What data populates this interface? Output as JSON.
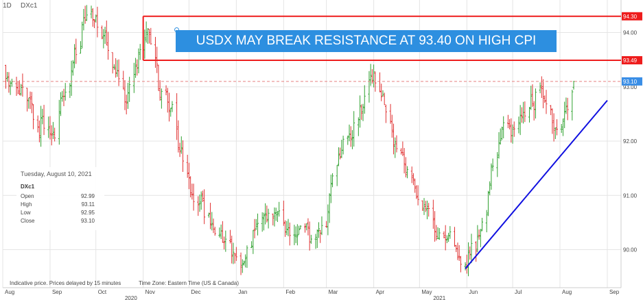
{
  "header": {
    "interval": "1D",
    "symbol": "DXc1"
  },
  "headline": "USDX MAY BREAK RESISTANCE AT 93.40 ON HIGH CPI",
  "colors": {
    "up": "#2ea02e",
    "down": "#e03030",
    "resistance": "#ee1c1c",
    "dashed": "#e88080",
    "trendline": "#1010e0",
    "headline_bg": "#2d8fe0",
    "grid": "#e4e4e4"
  },
  "info_box": {
    "date": "Tuesday, August 10, 2021",
    "symbol": "DXc1",
    "rows": [
      {
        "label": "Open",
        "value": "92.99"
      },
      {
        "label": "High",
        "value": "93.11"
      },
      {
        "label": "Low",
        "value": "92.95"
      },
      {
        "label": "Close",
        "value": "93.10"
      }
    ]
  },
  "footer": {
    "delay_note": "Indicative price. Prices delayed by 15 minutes",
    "timezone": "Time Zone: Eastern Time (US & Canada)"
  },
  "chart_data": {
    "type": "candlestick",
    "x_axis": {
      "start": "2020-08-01",
      "end": "2021-09-10",
      "ticks": [
        {
          "label": "Aug",
          "date": "2020-08-01"
        },
        {
          "label": "Sep",
          "date": "2020-09-01"
        },
        {
          "label": "Oct",
          "date": "2020-10-01"
        },
        {
          "label": "Nov",
          "date": "2020-11-01"
        },
        {
          "label": "Dec",
          "date": "2020-12-01"
        },
        {
          "label": "Jan",
          "date": "2021-01-01"
        },
        {
          "label": "Feb",
          "date": "2021-02-01"
        },
        {
          "label": "Mar",
          "date": "2021-03-01"
        },
        {
          "label": "Apr",
          "date": "2021-04-01"
        },
        {
          "label": "May",
          "date": "2021-05-01"
        },
        {
          "label": "Jun",
          "date": "2021-06-01"
        },
        {
          "label": "Jul",
          "date": "2021-07-01"
        },
        {
          "label": "Aug",
          "date": "2021-08-01"
        },
        {
          "label": "Sep",
          "date": "2021-09-01"
        }
      ],
      "years": [
        {
          "label": "2020",
          "date": "2020-10-20"
        },
        {
          "label": "2021",
          "date": "2021-05-10"
        }
      ]
    },
    "y_axis": {
      "ylim": [
        89.3,
        94.6
      ],
      "ticks": [
        90.0,
        91.0,
        92.0,
        93.0,
        94.0
      ],
      "tick_labels": [
        "90.00",
        "91.00",
        "92.00",
        "93.00",
        "94.00"
      ]
    },
    "price_path": [
      [
        "2020-08-01",
        93.4
      ],
      [
        "2020-08-20",
        92.4
      ],
      [
        "2020-09-01",
        92.2
      ],
      [
        "2020-09-10",
        93.0
      ],
      [
        "2020-09-25",
        94.4
      ],
      [
        "2020-10-05",
        93.8
      ],
      [
        "2020-10-20",
        92.9
      ],
      [
        "2020-11-04",
        94.1
      ],
      [
        "2020-11-12",
        92.8
      ],
      [
        "2020-11-20",
        92.4
      ],
      [
        "2020-12-01",
        91.2
      ],
      [
        "2020-12-20",
        90.2
      ],
      [
        "2021-01-06",
        89.7
      ],
      [
        "2021-01-15",
        90.6
      ],
      [
        "2021-01-28",
        90.6
      ],
      [
        "2021-02-10",
        90.4
      ],
      [
        "2021-02-25",
        90.2
      ],
      [
        "2021-03-05",
        91.5
      ],
      [
        "2021-03-18",
        92.1
      ],
      [
        "2021-03-31",
        93.3
      ],
      [
        "2021-04-15",
        92.0
      ],
      [
        "2021-04-30",
        91.0
      ],
      [
        "2021-05-12",
        90.4
      ],
      [
        "2021-05-25",
        89.9
      ],
      [
        "2021-06-08",
        90.1
      ],
      [
        "2021-06-20",
        92.0
      ],
      [
        "2021-07-01",
        92.3
      ],
      [
        "2021-07-10",
        92.7
      ],
      [
        "2021-07-20",
        93.1
      ],
      [
        "2021-07-30",
        92.1
      ],
      [
        "2021-08-10",
        93.1
      ]
    ],
    "last_bar": {
      "date": "2021-08-10",
      "open": 92.99,
      "high": 93.11,
      "low": 92.95,
      "close": 93.1
    },
    "horizontal_lines": [
      {
        "label": "94.30",
        "value": 94.3,
        "style": "solid",
        "start": "2020-11-01"
      },
      {
        "label": "93.49",
        "value": 93.49,
        "style": "solid",
        "start": "2020-11-01"
      },
      {
        "label": "93.10",
        "value": 93.1,
        "style": "dashed",
        "start": "2020-08-01"
      }
    ],
    "trendline": {
      "from": [
        "2021-05-31",
        89.65
      ],
      "to": [
        "2021-09-01",
        92.75
      ]
    },
    "grid": true
  }
}
